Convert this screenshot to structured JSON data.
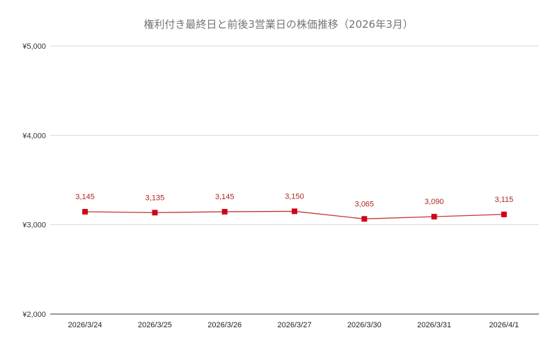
{
  "chart_data": {
    "type": "line",
    "title": "権利付き最終日と前後3営業日の株価推移（2026年3月）",
    "xlabel": "",
    "ylabel": "",
    "categories": [
      "2026/3/24",
      "2026/3/25",
      "2026/3/26",
      "2026/3/27",
      "2026/3/30",
      "2026/3/31",
      "2026/4/1"
    ],
    "series": [
      {
        "values": [
          3145,
          3135,
          3145,
          3150,
          3065,
          3090,
          3115
        ],
        "labels": [
          "3,145",
          "3,135",
          "3,145",
          "3,150",
          "3,065",
          "3,090",
          "3,115"
        ]
      }
    ],
    "ylim": [
      2000,
      5000
    ],
    "yticks": [
      2000,
      3000,
      4000,
      5000
    ],
    "ytick_labels": [
      "¥2,000",
      "¥3,000",
      "¥4,000",
      "¥5,000"
    ],
    "grid": true,
    "legend": "none",
    "colors": {
      "line": "#c0392b",
      "marker": "#d0021b",
      "label": "#b22222"
    }
  }
}
